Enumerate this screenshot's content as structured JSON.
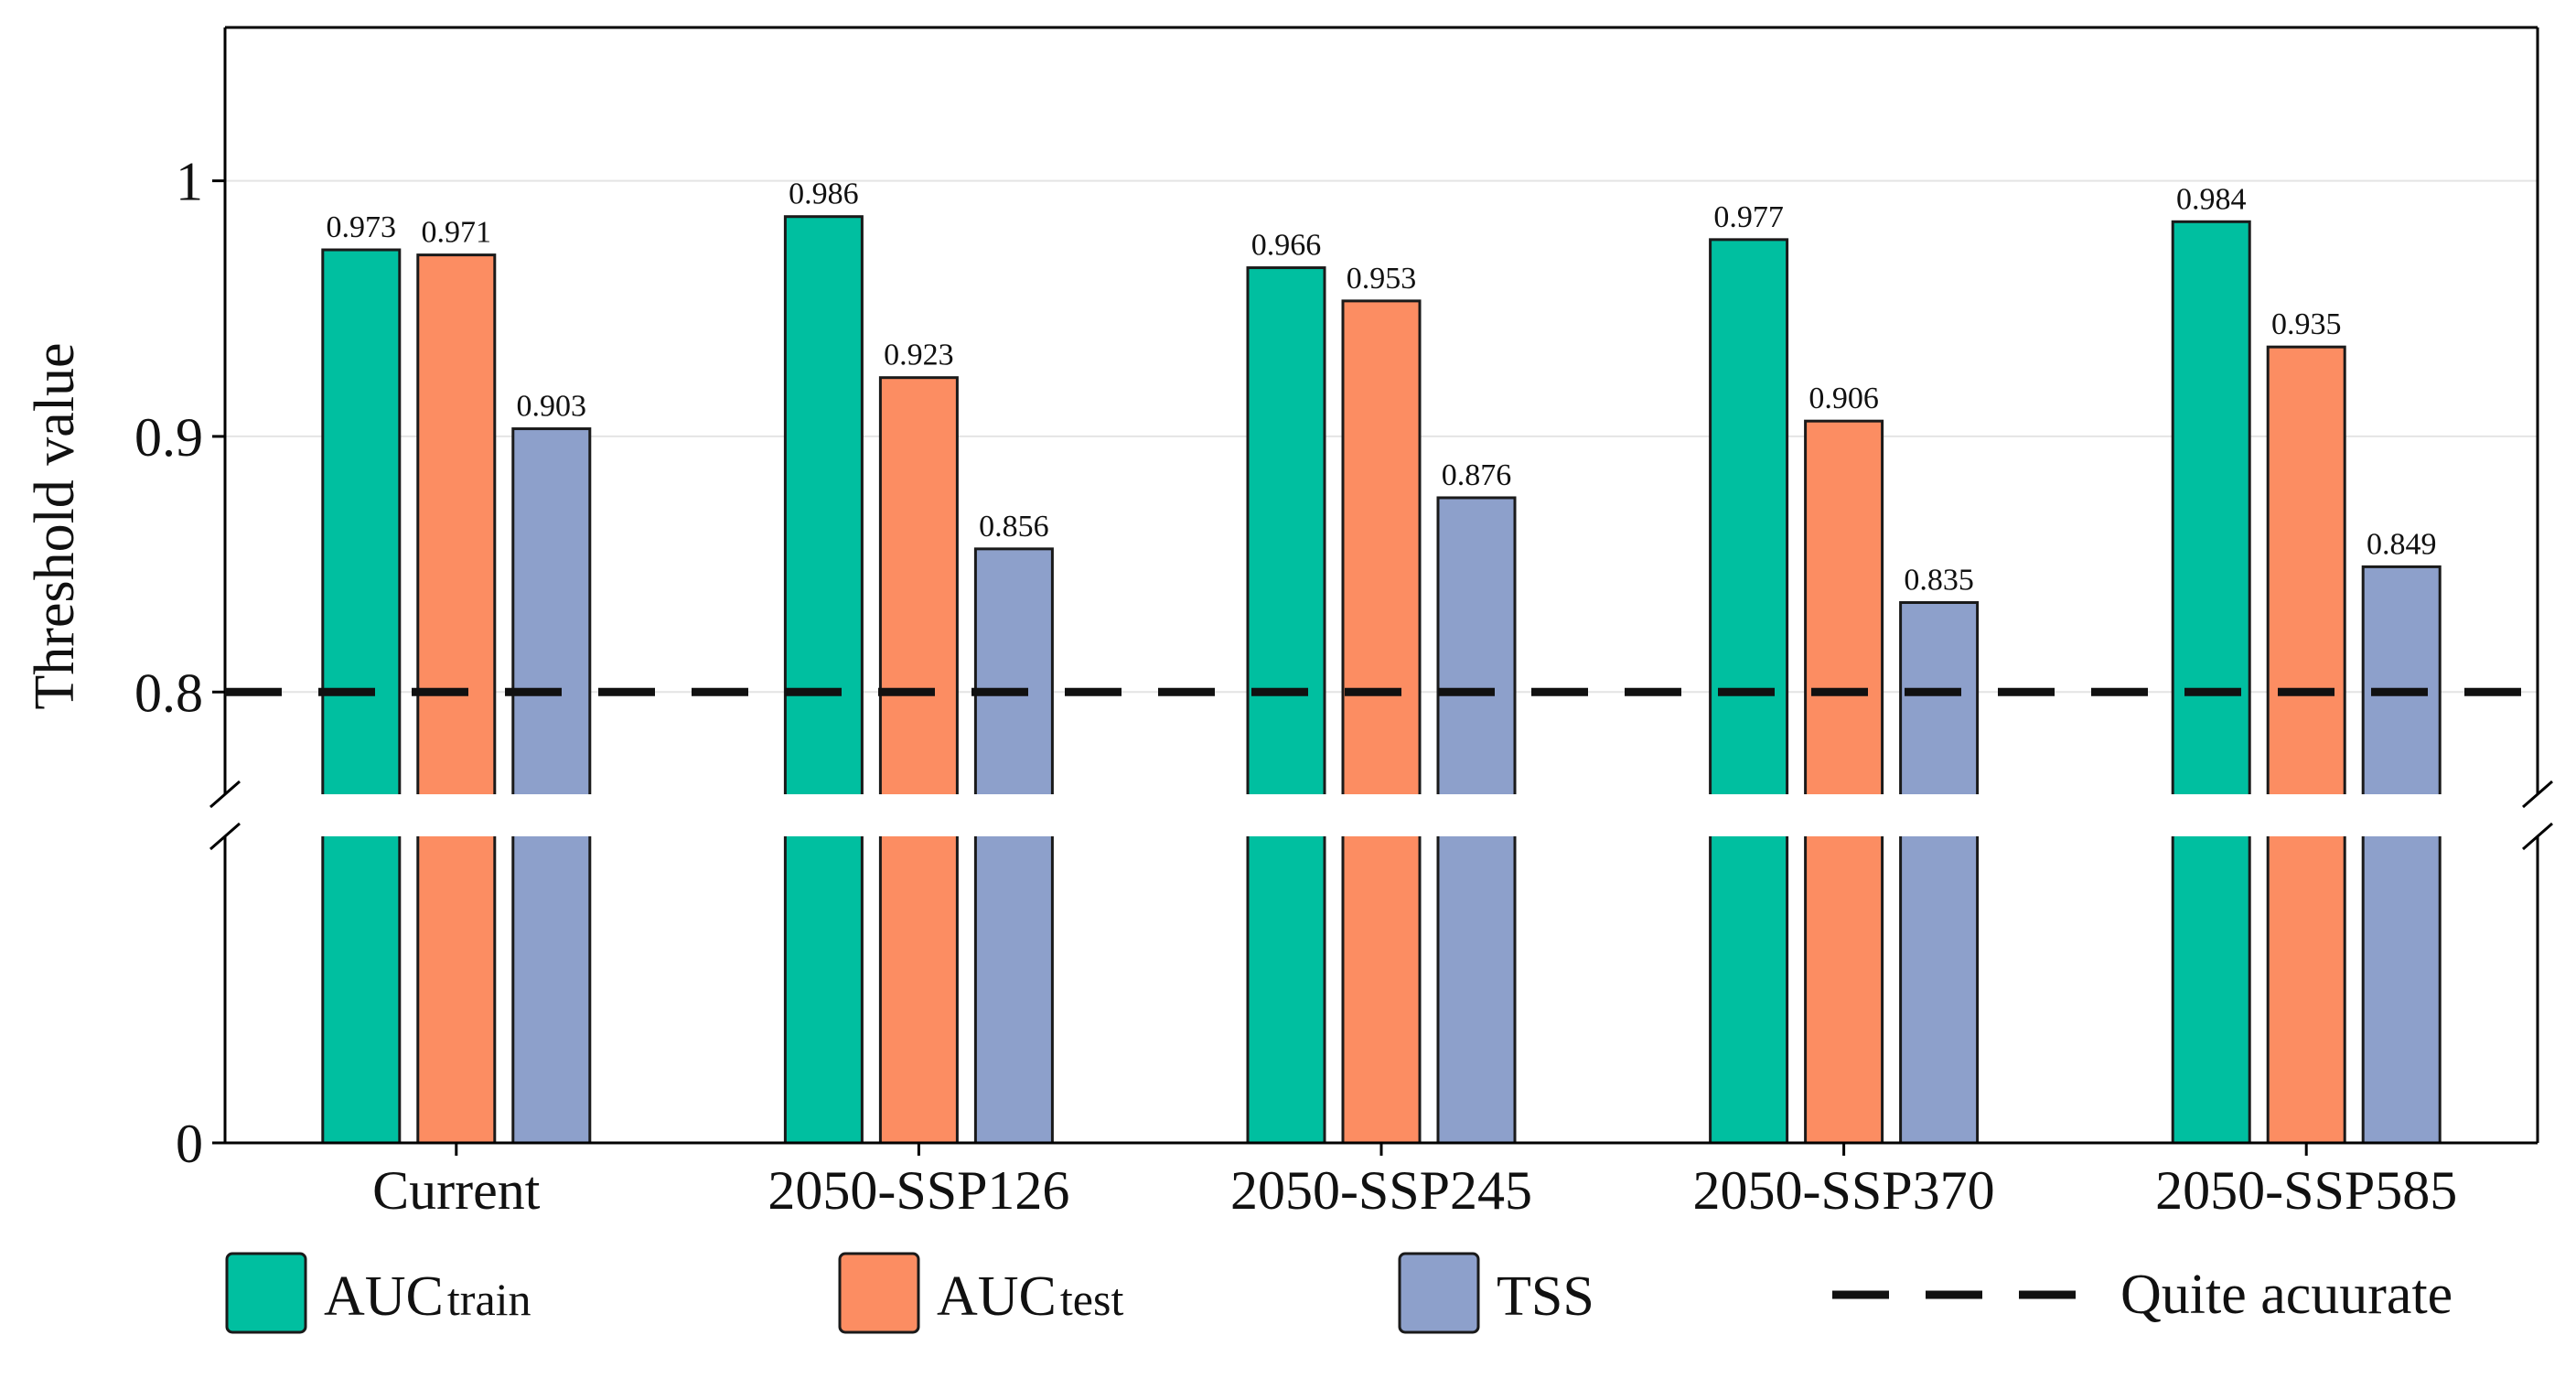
{
  "chart_data": {
    "type": "bar",
    "title": "",
    "xlabel": "",
    "ylabel": "Threshold value",
    "categories": [
      "Current",
      "2050-SSP126",
      "2050-SSP245",
      "2050-SSP370",
      "2050-SSP585"
    ],
    "series": [
      {
        "name": "AUCtrain",
        "legend_main": "AUC",
        "legend_sub": "train",
        "color": "#00BFA0",
        "values": [
          0.973,
          0.986,
          0.966,
          0.977,
          0.984
        ]
      },
      {
        "name": "AUCtest",
        "legend_main": "AUC",
        "legend_sub": "test",
        "color": "#FC8D62",
        "values": [
          0.971,
          0.923,
          0.953,
          0.906,
          0.935
        ]
      },
      {
        "name": "TSS",
        "legend_main": "TSS",
        "legend_sub": "",
        "color": "#8DA0CB",
        "values": [
          0.903,
          0.856,
          0.876,
          0.835,
          0.849
        ]
      }
    ],
    "data_labels": [
      [
        "0.973",
        "0.971",
        "0.903"
      ],
      [
        "0.986",
        "0.923",
        "0.856"
      ],
      [
        "0.966",
        "0.953",
        "0.876"
      ],
      [
        "0.977",
        "0.906",
        "0.835"
      ],
      [
        "0.984",
        "0.935",
        "0.849"
      ]
    ],
    "y_ticks": [
      {
        "value": 0,
        "label": "0"
      },
      {
        "value": 0.8,
        "label": "0.8"
      },
      {
        "value": 0.9,
        "label": "0.9"
      },
      {
        "value": 1.0,
        "label": "1"
      }
    ],
    "axis_break": true,
    "upper_segment_range": [
      0.76,
      1.06
    ],
    "reference_line": {
      "value": 0.8,
      "style": "dashed",
      "label": "Quite acuurate"
    },
    "grid": "horizontal-major",
    "legend_position": "bottom"
  }
}
